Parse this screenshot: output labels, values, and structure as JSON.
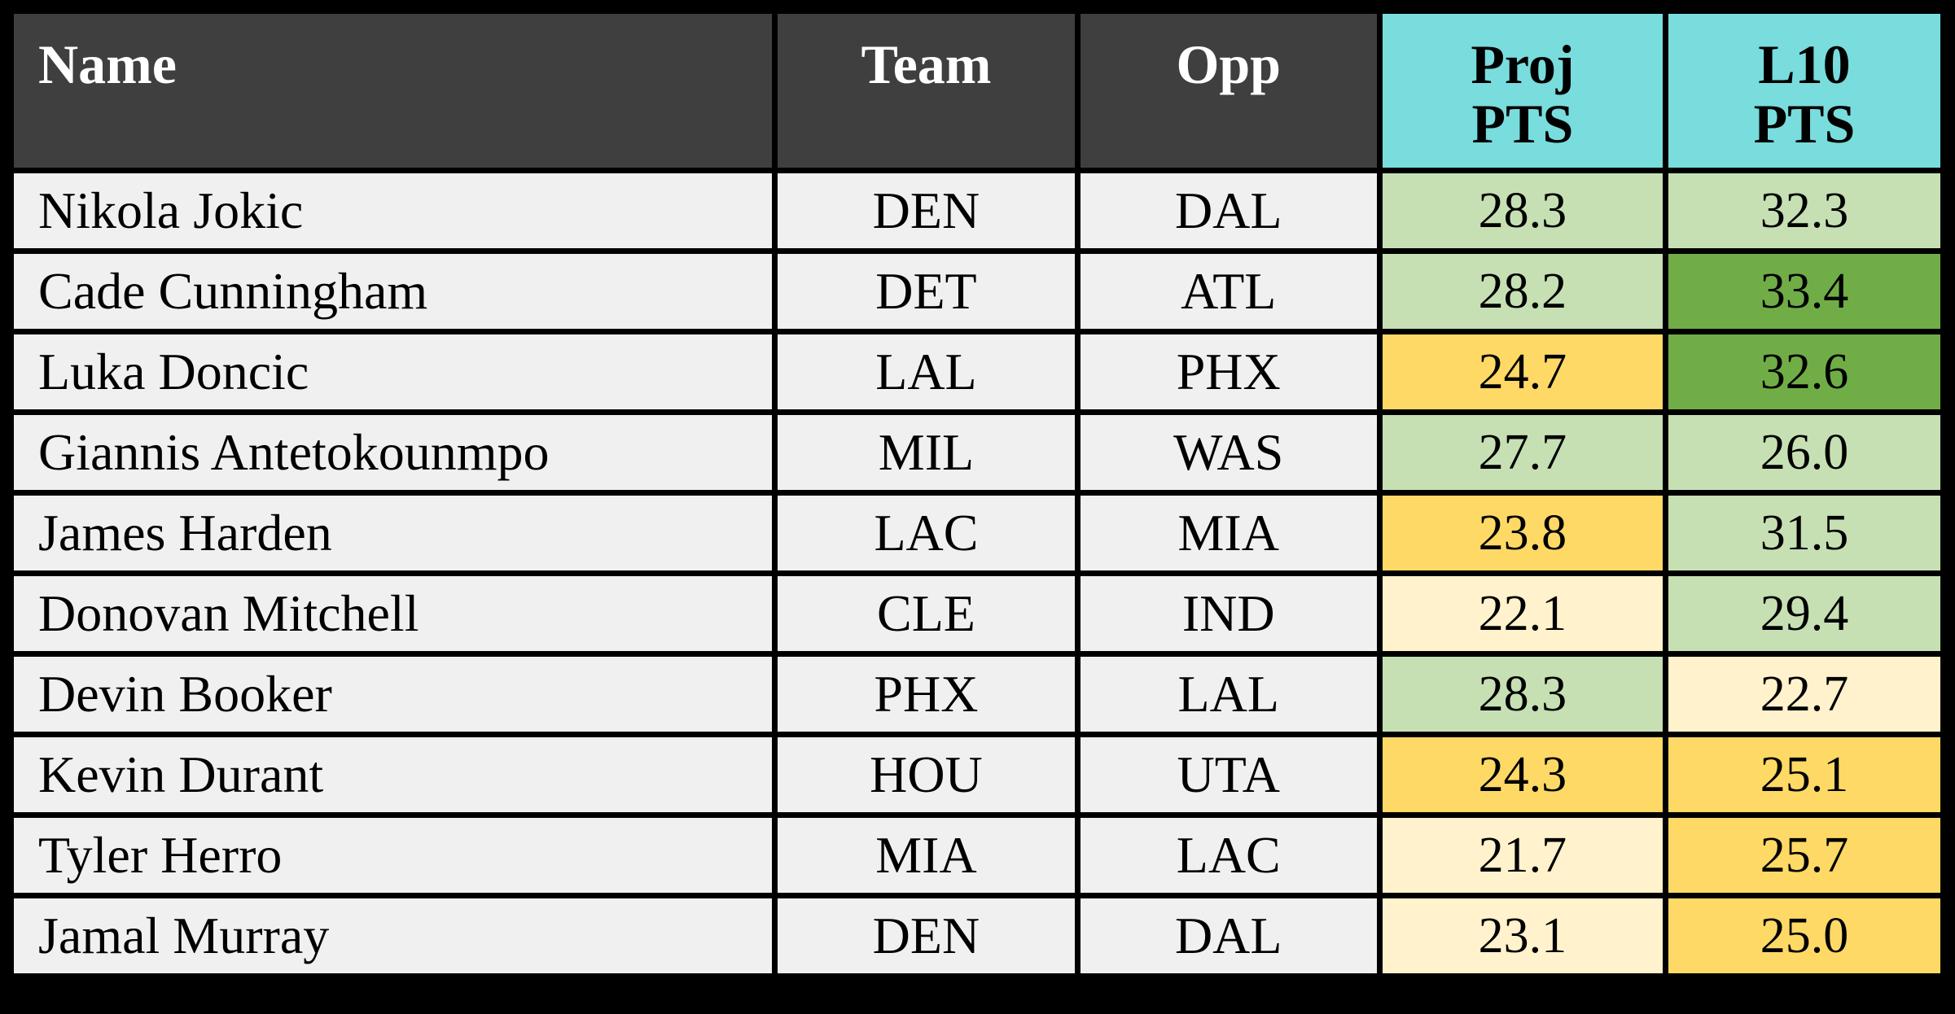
{
  "colors": {
    "canvas_border": "#000000",
    "header_dark": "#3F3F3F",
    "header_accent_cyan": "#79DCDD",
    "row_background": "#F0F0F0",
    "scale_green_strong": "#70AD47",
    "scale_green_light": "#C6E0B4",
    "scale_gold": "#FFD966",
    "scale_gold_pale": "#FFF2CC"
  },
  "table": {
    "headers": [
      {
        "label": "Name"
      },
      {
        "label": "Team"
      },
      {
        "label": "Opp"
      },
      {
        "line1": "Proj",
        "line2": "PTS"
      },
      {
        "line1": "L10",
        "line2": "PTS"
      }
    ],
    "rows": [
      {
        "name": "Nikola Jokic",
        "team": "DEN",
        "opp": "DAL",
        "proj": "28.3",
        "l10": "32.3",
        "proj_color": "#C6E0B4",
        "l10_color": "#C6E0B4"
      },
      {
        "name": "Cade Cunningham",
        "team": "DET",
        "opp": "ATL",
        "proj": "28.2",
        "l10": "33.4",
        "proj_color": "#C6E0B4",
        "l10_color": "#70AD47"
      },
      {
        "name": "Luka Doncic",
        "team": "LAL",
        "opp": "PHX",
        "proj": "24.7",
        "l10": "32.6",
        "proj_color": "#FFD966",
        "l10_color": "#70AD47"
      },
      {
        "name": "Giannis Antetokounmpo",
        "team": "MIL",
        "opp": "WAS",
        "proj": "27.7",
        "l10": "26.0",
        "proj_color": "#C6E0B4",
        "l10_color": "#C6E0B4"
      },
      {
        "name": "James Harden",
        "team": "LAC",
        "opp": "MIA",
        "proj": "23.8",
        "l10": "31.5",
        "proj_color": "#FFD966",
        "l10_color": "#C6E0B4"
      },
      {
        "name": "Donovan Mitchell",
        "team": "CLE",
        "opp": "IND",
        "proj": "22.1",
        "l10": "29.4",
        "proj_color": "#FFF2CC",
        "l10_color": "#C6E0B4"
      },
      {
        "name": "Devin Booker",
        "team": "PHX",
        "opp": "LAL",
        "proj": "28.3",
        "l10": "22.7",
        "proj_color": "#C6E0B4",
        "l10_color": "#FFF2CC"
      },
      {
        "name": "Kevin Durant",
        "team": "HOU",
        "opp": "UTA",
        "proj": "24.3",
        "l10": "25.1",
        "proj_color": "#FFD966",
        "l10_color": "#FFD966"
      },
      {
        "name": "Tyler Herro",
        "team": "MIA",
        "opp": "LAC",
        "proj": "21.7",
        "l10": "25.7",
        "proj_color": "#FFF2CC",
        "l10_color": "#FFD966"
      },
      {
        "name": "Jamal Murray",
        "team": "DEN",
        "opp": "DAL",
        "proj": "23.1",
        "l10": "25.0",
        "proj_color": "#FFF2CC",
        "l10_color": "#FFD966"
      }
    ]
  },
  "chart_data": {
    "type": "table",
    "title": "",
    "columns": [
      "Name",
      "Team",
      "Opp",
      "Proj PTS",
      "L10 PTS"
    ],
    "rows": [
      [
        "Nikola Jokic",
        "DEN",
        "DAL",
        28.3,
        32.3
      ],
      [
        "Cade Cunningham",
        "DET",
        "ATL",
        28.2,
        33.4
      ],
      [
        "Luka Doncic",
        "LAL",
        "PHX",
        24.7,
        32.6
      ],
      [
        "Giannis Antetokounmpo",
        "MIL",
        "WAS",
        27.7,
        26.0
      ],
      [
        "James Harden",
        "LAC",
        "MIA",
        23.8,
        31.5
      ],
      [
        "Donovan Mitchell",
        "CLE",
        "IND",
        22.1,
        29.4
      ],
      [
        "Devin Booker",
        "PHX",
        "LAL",
        28.3,
        22.7
      ],
      [
        "Kevin Durant",
        "HOU",
        "UTA",
        24.3,
        25.1
      ],
      [
        "Tyler Herro",
        "MIA",
        "LAC",
        21.7,
        25.7
      ],
      [
        "Jamal Murray",
        "DEN",
        "DAL",
        23.1,
        25.0
      ]
    ],
    "layout_hints": {
      "stat_columns_color_scale": "green = higher points, gold/pale yellow = lower points",
      "header_style": "dark gray for text columns, cyan for stat columns",
      "grid": "thick black borders"
    }
  }
}
